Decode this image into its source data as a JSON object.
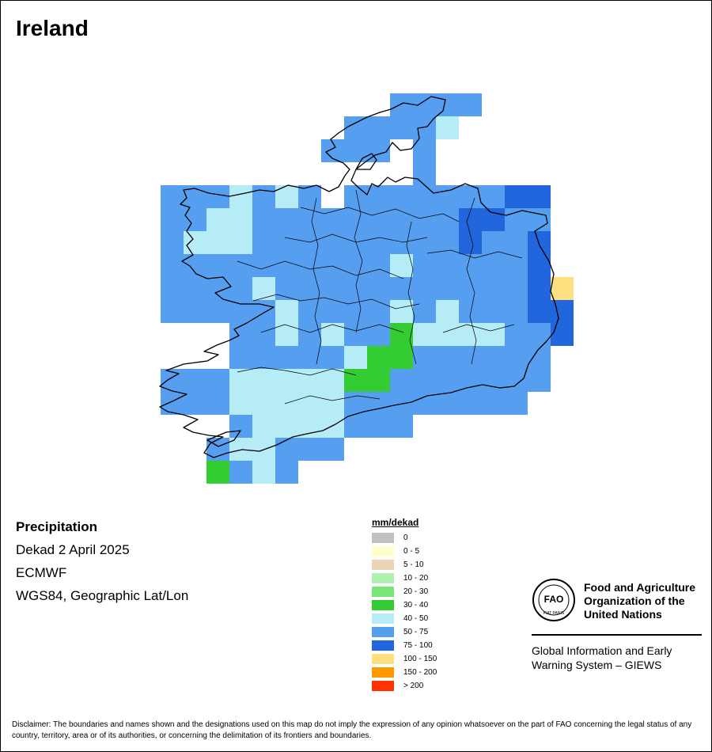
{
  "title": "Ireland",
  "info": {
    "variable": "Precipitation",
    "period": "Dekad 2 April 2025",
    "source": "ECMWF",
    "projection": "WGS84, Geographic Lat/Lon"
  },
  "legend": {
    "title": "mm/dekad",
    "items": [
      {
        "label": "0",
        "color": "#c0c0c0"
      },
      {
        "label": "0 - 5",
        "color": "#ffffcc"
      },
      {
        "label": "5 - 10",
        "color": "#ead6b6"
      },
      {
        "label": "10 - 20",
        "color": "#b0f0b0"
      },
      {
        "label": "20 - 30",
        "color": "#7ae67a"
      },
      {
        "label": "30 - 40",
        "color": "#33cc33"
      },
      {
        "label": "40 - 50",
        "color": "#b6ecf6"
      },
      {
        "label": "50 - 75",
        "color": "#569ff0"
      },
      {
        "label": "75 - 100",
        "color": "#2266dd"
      },
      {
        "label": "100 - 150",
        "color": "#ffe080"
      },
      {
        "label": "150 - 200",
        "color": "#ff9900"
      },
      {
        "label": "> 200",
        "color": "#ff3300"
      }
    ]
  },
  "logo": {
    "name_lines": [
      "Food and Agriculture",
      "Organization of the",
      "United Nations"
    ],
    "system_lines": [
      "Global Information and Early",
      "Warning System – GIEWS"
    ],
    "emblem_text": "FAO",
    "motto": "FIAT PANIS"
  },
  "disclaimer": "Disclaimer: The boundaries and names shown and the designations used on this map do not imply the expression of any opinion whatsoever on the part of FAO concerning the legal status of any country, territory, area or of its authorities, or concerning the delimitation of its frontiers and boundaries."
}
